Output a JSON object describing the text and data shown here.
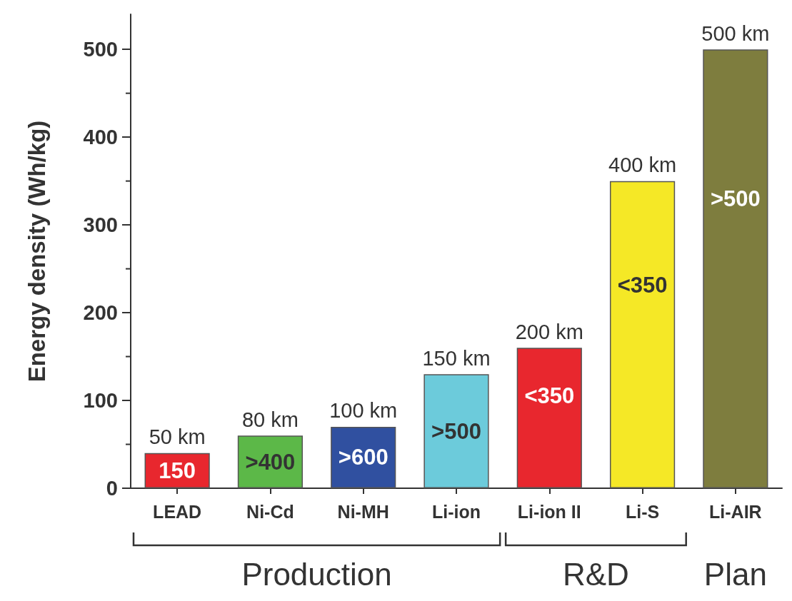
{
  "chart_data": {
    "type": "bar",
    "ylabel": "Energy density (Wh/kg)",
    "categories": [
      "LEAD",
      "Ni-Cd",
      "Ni-MH",
      "Li-ion",
      "Li-ion II",
      "Li-S",
      "Li-AIR"
    ],
    "values": [
      40,
      60,
      70,
      130,
      160,
      350,
      500
    ],
    "colors": [
      "#e8272e",
      "#5cb848",
      "#3050a0",
      "#6ccbdb",
      "#e8272e",
      "#f5e826",
      "#7e7d3e"
    ],
    "ylim": [
      0,
      540
    ],
    "yticks": [
      0,
      100,
      200,
      300,
      400,
      500
    ],
    "grid": false,
    "annotations": [
      {
        "text": "50 km",
        "x": "LEAD",
        "y": 40
      },
      {
        "text": "80 km",
        "x": "Ni-Cd",
        "y": 60
      },
      {
        "text": "100 km",
        "x": "Ni-MH",
        "y": 70
      },
      {
        "text": "150 km",
        "x": "Li-ion",
        "y": 130
      },
      {
        "text": "200 km",
        "x": "Li-ion II",
        "y": 160
      },
      {
        "text": "400 km",
        "x": "Li-S",
        "y": 350
      },
      {
        "text": "500 km",
        "x": "Li-AIR",
        "y": 500
      },
      "150",
      ">400",
      ">600",
      ">500",
      "<350",
      "<350",
      ">500",
      "Production",
      "R&D",
      "Plan"
    ]
  }
}
